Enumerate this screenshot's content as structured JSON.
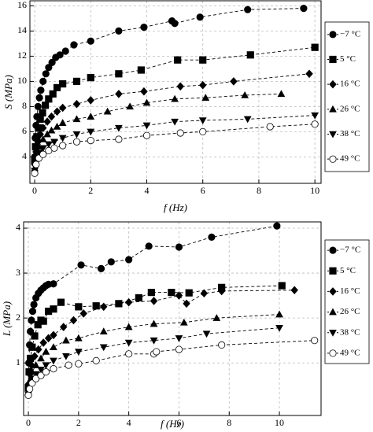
{
  "chart_data": [
    {
      "type": "line",
      "y_label": "S (MPa)",
      "x_label": "f (Hz)",
      "xlim": [
        -0.17,
        10.22
      ],
      "ylim": [
        1.9,
        16.4
      ],
      "xticks": [
        0,
        2,
        4,
        6,
        8,
        10
      ],
      "yticks": [
        4,
        6,
        8,
        10,
        12,
        14,
        16
      ],
      "grid": true,
      "legend": "right",
      "series": [
        {
          "name": "−7 °C",
          "color": "#000",
          "marker": "circle",
          "x": [
            0,
            0.02,
            0.05,
            0.08,
            0.12,
            0.17,
            0.22,
            0.3,
            0.4,
            0.5,
            0.62,
            0.75,
            0.9,
            1.1,
            1.4,
            2,
            3,
            3.9,
            4.9,
            5,
            5.9,
            7.6,
            9.6
          ],
          "values": [
            4.0,
            5.5,
            6.5,
            7.2,
            8,
            8.7,
            9.3,
            10,
            10.6,
            11.1,
            11.5,
            11.9,
            12.1,
            12.4,
            12.9,
            13.2,
            14,
            14.3,
            14.8,
            14.6,
            15.1,
            15.7,
            15.8
          ]
        },
        {
          "name": "5 °C",
          "color": "#000",
          "marker": "square",
          "x": [
            0,
            0.03,
            0.08,
            0.14,
            0.2,
            0.28,
            0.38,
            0.5,
            0.65,
            0.8,
            1.0,
            1.5,
            2.0,
            3.0,
            3.8,
            5.1,
            6.0,
            7.7,
            10.0
          ],
          "values": [
            3.7,
            4.8,
            5.6,
            6.3,
            7,
            7.5,
            8.1,
            8.6,
            9.0,
            9.5,
            9.8,
            10.0,
            10.3,
            10.6,
            10.9,
            11.7,
            11.7,
            12.1,
            12.7
          ]
        },
        {
          "name": "16 °C",
          "color": "#000",
          "marker": "diamond",
          "x": [
            0,
            0.05,
            0.12,
            0.2,
            0.3,
            0.45,
            0.6,
            0.8,
            1.0,
            1.5,
            2.0,
            3.0,
            3.9,
            5.2,
            6.0,
            7.1,
            9.8
          ],
          "values": [
            3.4,
            4.4,
            5.2,
            5.8,
            6.3,
            6.8,
            7.2,
            7.6,
            7.9,
            8.2,
            8.5,
            9.0,
            9.2,
            9.6,
            9.7,
            10.0,
            10.6
          ]
        },
        {
          "name": "26 °C",
          "color": "#000",
          "marker": "triangle",
          "x": [
            0,
            0.05,
            0.15,
            0.3,
            0.45,
            0.6,
            0.8,
            1.0,
            1.5,
            2.0,
            2.6,
            3.4,
            4.0,
            5.0,
            6.1,
            7.5,
            8.8
          ],
          "values": [
            3.1,
            4.0,
            4.8,
            5.4,
            5.8,
            6.1,
            6.4,
            6.7,
            7.0,
            7.2,
            7.6,
            8.0,
            8.3,
            8.6,
            8.7,
            8.9,
            9.0
          ]
        },
        {
          "name": "38 °C",
          "color": "#000",
          "marker": "triangle-down",
          "x": [
            0,
            0.05,
            0.15,
            0.3,
            0.5,
            0.7,
            1.0,
            1.5,
            2.0,
            3.0,
            4.0,
            5.0,
            6.0,
            7.6,
            10.0
          ],
          "values": [
            2.9,
            3.7,
            4.3,
            4.7,
            5.0,
            5.2,
            5.5,
            5.8,
            6.0,
            6.3,
            6.5,
            6.8,
            6.9,
            7.0,
            7.3
          ]
        },
        {
          "name": "49 °C",
          "color": "#000",
          "marker": "circle-open",
          "x": [
            0,
            0.05,
            0.15,
            0.3,
            0.5,
            0.7,
            1.0,
            1.5,
            2.0,
            3.0,
            4.0,
            5.2,
            6.0,
            8.4,
            10.0
          ],
          "values": [
            2.7,
            3.4,
            3.9,
            4.2,
            4.5,
            4.7,
            4.9,
            5.2,
            5.3,
            5.4,
            5.7,
            5.9,
            6.0,
            6.4,
            6.6
          ]
        }
      ]
    },
    {
      "type": "line",
      "y_label": "L (MPa)",
      "x_label": "f (Hz)",
      "xlim": [
        -0.19,
        11.66
      ],
      "ylim": [
        -0.17,
        4.14
      ],
      "xticks": [
        0,
        2,
        4,
        6,
        8,
        10
      ],
      "yticks": [
        1,
        2,
        3,
        4
      ],
      "grid": true,
      "legend": "right",
      "series": [
        {
          "name": "−7 °C",
          "color": "#000",
          "marker": "circle",
          "x": [
            0,
            0.02,
            0.05,
            0.08,
            0.12,
            0.17,
            0.22,
            0.3,
            0.4,
            0.5,
            0.6,
            0.7,
            0.8,
            1.0,
            2.1,
            2.9,
            3.3,
            4.0,
            4.8,
            6.0,
            7.3,
            9.9
          ],
          "values": [
            0.5,
            1.0,
            1.4,
            1.7,
            1.95,
            2.15,
            2.3,
            2.45,
            2.55,
            2.62,
            2.67,
            2.72,
            2.75,
            2.76,
            3.18,
            3.1,
            3.25,
            3.3,
            3.6,
            3.58,
            3.8,
            4.05
          ]
        },
        {
          "name": "5 °C",
          "color": "#000",
          "marker": "square",
          "x": [
            0,
            0.03,
            0.08,
            0.15,
            0.25,
            0.38,
            0.5,
            0.6,
            0.8,
            1.0,
            1.3,
            2.0,
            2.7,
            3.6,
            4.4,
            4.9,
            5.7,
            6.4,
            7.7,
            10.1
          ],
          "values": [
            0.45,
            0.8,
            1.1,
            1.35,
            1.6,
            1.85,
            1.95,
            1.93,
            2.15,
            2.2,
            2.35,
            2.25,
            2.27,
            2.32,
            2.45,
            2.57,
            2.57,
            2.56,
            2.68,
            2.72
          ]
        },
        {
          "name": "16 °C",
          "color": "#000",
          "marker": "diamond",
          "x": [
            0,
            0.05,
            0.12,
            0.25,
            0.4,
            0.6,
            0.8,
            1.0,
            1.4,
            1.8,
            2.2,
            3.0,
            4.0,
            5.0,
            6.0,
            6.3,
            7.0,
            7.7,
            10.6
          ],
          "values": [
            0.4,
            0.75,
            0.95,
            1.15,
            1.3,
            1.45,
            1.55,
            1.62,
            1.8,
            1.95,
            2.1,
            2.25,
            2.35,
            2.38,
            2.5,
            2.32,
            2.55,
            2.6,
            2.62
          ]
        },
        {
          "name": "26 °C",
          "color": "#000",
          "marker": "triangle",
          "x": [
            0,
            0.05,
            0.15,
            0.3,
            0.5,
            0.7,
            1.0,
            1.5,
            2.0,
            3.0,
            4.0,
            5.0,
            6.2,
            7.5,
            10.0
          ],
          "values": [
            0.35,
            0.6,
            0.8,
            0.95,
            1.1,
            1.25,
            1.35,
            1.5,
            1.55,
            1.7,
            1.8,
            1.87,
            1.9,
            2.0,
            2.08
          ]
        },
        {
          "name": "38 °C",
          "color": "#000",
          "marker": "triangle-down",
          "x": [
            0,
            0.05,
            0.15,
            0.3,
            0.5,
            0.7,
            1.0,
            1.5,
            2.0,
            3.0,
            4.0,
            5.0,
            6.0,
            7.1,
            10.0
          ],
          "values": [
            0.3,
            0.5,
            0.65,
            0.75,
            0.85,
            0.95,
            1.05,
            1.15,
            1.25,
            1.35,
            1.45,
            1.5,
            1.55,
            1.65,
            1.78
          ]
        },
        {
          "name": "49 °C",
          "color": "#000",
          "marker": "circle-open",
          "x": [
            0,
            0.05,
            0.15,
            0.3,
            0.5,
            0.7,
            1.0,
            1.6,
            2.0,
            2.7,
            4.0,
            5.0,
            5.1,
            6.0,
            7.7,
            11.4
          ],
          "values": [
            0.28,
            0.42,
            0.55,
            0.65,
            0.72,
            0.8,
            0.87,
            0.95,
            0.98,
            1.05,
            1.2,
            1.2,
            1.25,
            1.3,
            1.4,
            1.5
          ]
        }
      ]
    }
  ]
}
